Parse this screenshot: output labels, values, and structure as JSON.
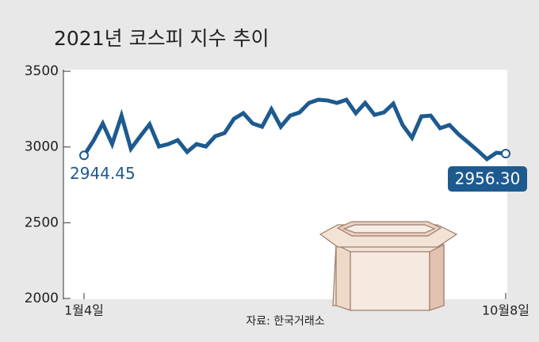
{
  "chart_data": {
    "type": "line",
    "title": "2021년 코스피 지수 추이",
    "source": "자료: 한국거래소",
    "categories": [
      "1월4일",
      null,
      null,
      null,
      null,
      null,
      null,
      null,
      null,
      null,
      null,
      null,
      null,
      null,
      null,
      null,
      null,
      null,
      null,
      null,
      null,
      null,
      null,
      null,
      null,
      null,
      null,
      null,
      null,
      null,
      null,
      null,
      null,
      null,
      null,
      null,
      null,
      null,
      null,
      null,
      null,
      null,
      null,
      null,
      null,
      "10월8일"
    ],
    "values": [
      2944.45,
      3040,
      3155,
      3019,
      3207,
      2988,
      3071,
      3150,
      3003,
      3019,
      3045,
      2967,
      3019,
      3003,
      3071,
      3092,
      3186,
      3223,
      3155,
      3134,
      3249,
      3134,
      3207,
      3228,
      3291,
      3312,
      3307,
      3291,
      3312,
      3223,
      3291,
      3212,
      3228,
      3286,
      3145,
      3061,
      3202,
      3207,
      3124,
      3145,
      3082,
      3030,
      2977,
      2920,
      2962,
      2956.3
    ],
    "value_labels": [
      "2944.45",
      null,
      null,
      null,
      null,
      null,
      null,
      null,
      null,
      null,
      null,
      null,
      null,
      null,
      null,
      null,
      null,
      null,
      null,
      null,
      null,
      null,
      null,
      null,
      null,
      null,
      null,
      null,
      null,
      null,
      null,
      null,
      null,
      null,
      null,
      null,
      null,
      null,
      null,
      null,
      null,
      null,
      null,
      null,
      null,
      "2956.30"
    ],
    "color": "#1d5a8f",
    "ylim": [
      2000,
      3500
    ],
    "yticks": [
      2000,
      2500,
      3000,
      3500
    ],
    "grid": false
  }
}
